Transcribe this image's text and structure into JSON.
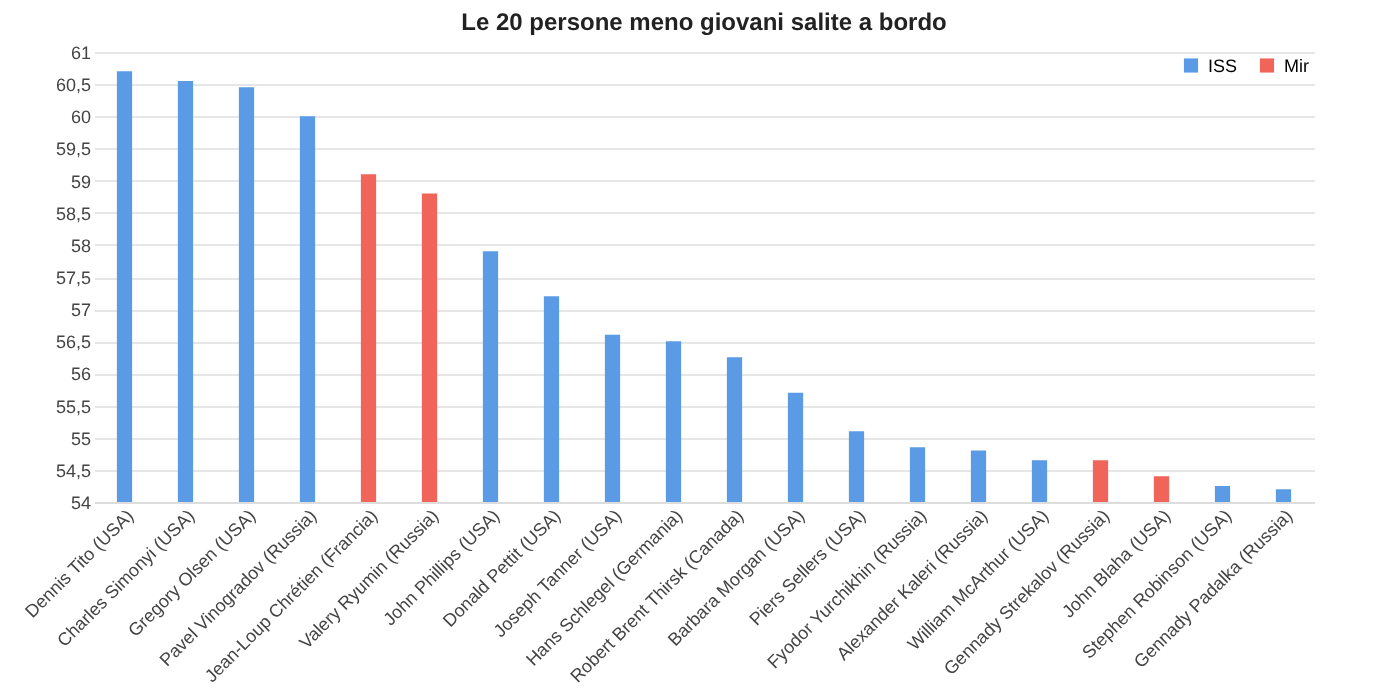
{
  "chart_data": {
    "type": "bar",
    "title": "Le 20 persone meno giovani salite a bordo",
    "categories": [
      "Dennis Tito (USA)",
      "Charles Simonyi (USA)",
      "Gregory Olsen (USA)",
      "Pavel Vinogradov (Russia)",
      "Jean-Loup Chrétien (Francia)",
      "Valery Ryumin (Russia)",
      "John Phillips (USA)",
      "Donald Pettit (USA)",
      "Joseph Tanner (USA)",
      "Hans Schlegel (Germania)",
      "Robert Brent Thirsk (Canada)",
      "Barbara Morgan (USA)",
      "Piers Sellers (USA)",
      "Fyodor Yurchikhin (Russia)",
      "Alexander Kaleri (Russia)",
      "William McArthur (USA)",
      "Gennady Strekalov (Russia)",
      "John Blaha (USA)",
      "Stephen Robinson (USA)",
      "Gennady Padalka (Russia)"
    ],
    "series": [
      {
        "name": "ISS",
        "color": "#5b9be6",
        "values": [
          60.7,
          60.55,
          60.45,
          60.0,
          null,
          null,
          57.9,
          57.2,
          56.6,
          56.5,
          56.25,
          55.7,
          55.1,
          54.85,
          54.8,
          54.65,
          null,
          null,
          54.25,
          54.2
        ]
      },
      {
        "name": "Mir",
        "color": "#f0645a",
        "values": [
          null,
          null,
          null,
          null,
          59.1,
          58.8,
          null,
          null,
          null,
          null,
          null,
          null,
          null,
          null,
          null,
          null,
          54.65,
          54.4,
          null,
          null
        ]
      }
    ],
    "ylim": [
      54,
      61
    ],
    "yticks": [
      54,
      {
        "value": 54.5,
        "label": "54,5"
      },
      55,
      {
        "value": 55.5,
        "label": "55,5"
      },
      56,
      {
        "value": 56.5,
        "label": "56,5"
      },
      57,
      {
        "value": 57.5,
        "label": "57,5"
      },
      58,
      {
        "value": 58.5,
        "label": "58,5"
      },
      59,
      {
        "value": 59.5,
        "label": "59,5"
      },
      60,
      {
        "value": 60.5,
        "label": "60,5"
      },
      61
    ],
    "grid": "y",
    "legend": "top right"
  }
}
